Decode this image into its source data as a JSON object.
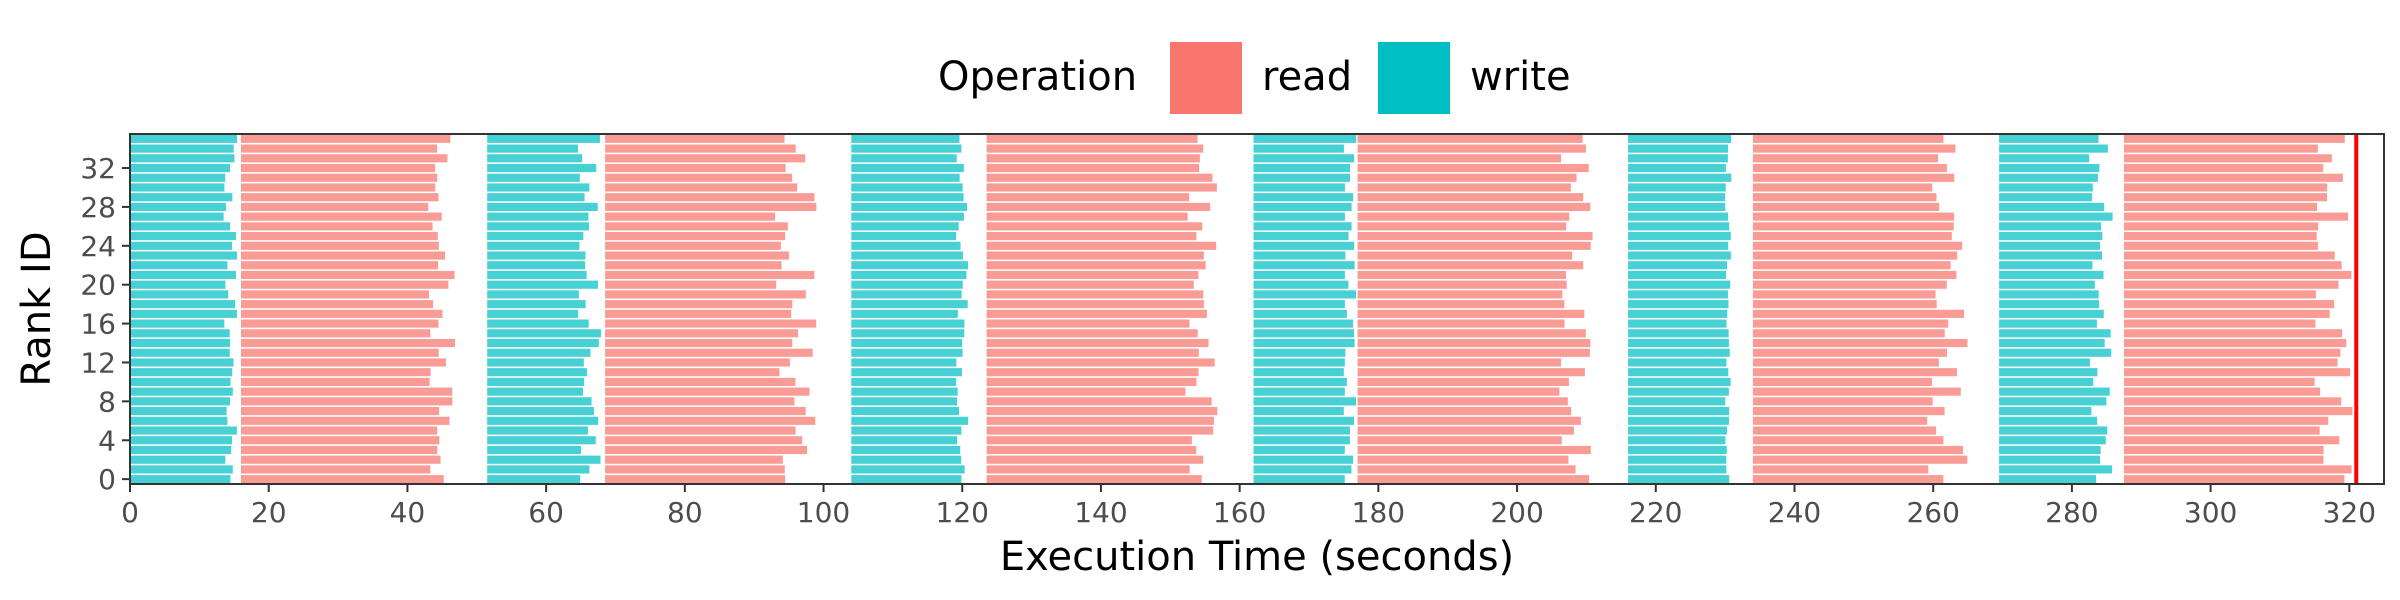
{
  "chart_data": {
    "type": "timeline",
    "xlabel": "Execution Time (seconds)",
    "ylabel": "Rank ID",
    "xlim": [
      0,
      325
    ],
    "ylim": [
      -0.5,
      35.5
    ],
    "x_ticks": [
      0,
      20,
      40,
      60,
      80,
      100,
      120,
      140,
      160,
      180,
      200,
      220,
      240,
      260,
      280,
      300,
      320
    ],
    "y_ticks": [
      0,
      4,
      8,
      12,
      16,
      20,
      24,
      28,
      32
    ],
    "legend": {
      "title": "Operation",
      "position": "top",
      "items": [
        {
          "label": "read",
          "color": "#F8766D"
        },
        {
          "label": "write",
          "color": "#00BFC4"
        }
      ]
    },
    "ranks": 36,
    "end_marker_x": 321,
    "end_marker_color": "#ff0000",
    "phases": [
      {
        "op": "write",
        "start": 0,
        "end_range": [
          13.5,
          15.5
        ]
      },
      {
        "op": "read",
        "start": 16,
        "end_range": [
          43,
          47
        ]
      },
      {
        "op": "write",
        "start": 51.5,
        "end_range": [
          64.5,
          68
        ]
      },
      {
        "op": "read",
        "start": 68.5,
        "end_range": [
          93,
          99
        ]
      },
      {
        "op": "write",
        "start": 104,
        "end_range": [
          119,
          121
        ]
      },
      {
        "op": "read",
        "start": 123.5,
        "end_range": [
          152,
          157
        ]
      },
      {
        "op": "write",
        "start": 162,
        "end_range": [
          175,
          177
        ]
      },
      {
        "op": "read",
        "start": 177,
        "end_range": [
          206,
          211
        ]
      },
      {
        "op": "write",
        "start": 216,
        "end_range": [
          230,
          231
        ]
      },
      {
        "op": "read",
        "start": 234,
        "end_range": [
          259,
          265
        ]
      },
      {
        "op": "write",
        "start": 269.5,
        "end_range": [
          282.5,
          286
        ]
      },
      {
        "op": "read",
        "start": 287.5,
        "end_range": [
          315,
          320.5
        ]
      }
    ]
  }
}
